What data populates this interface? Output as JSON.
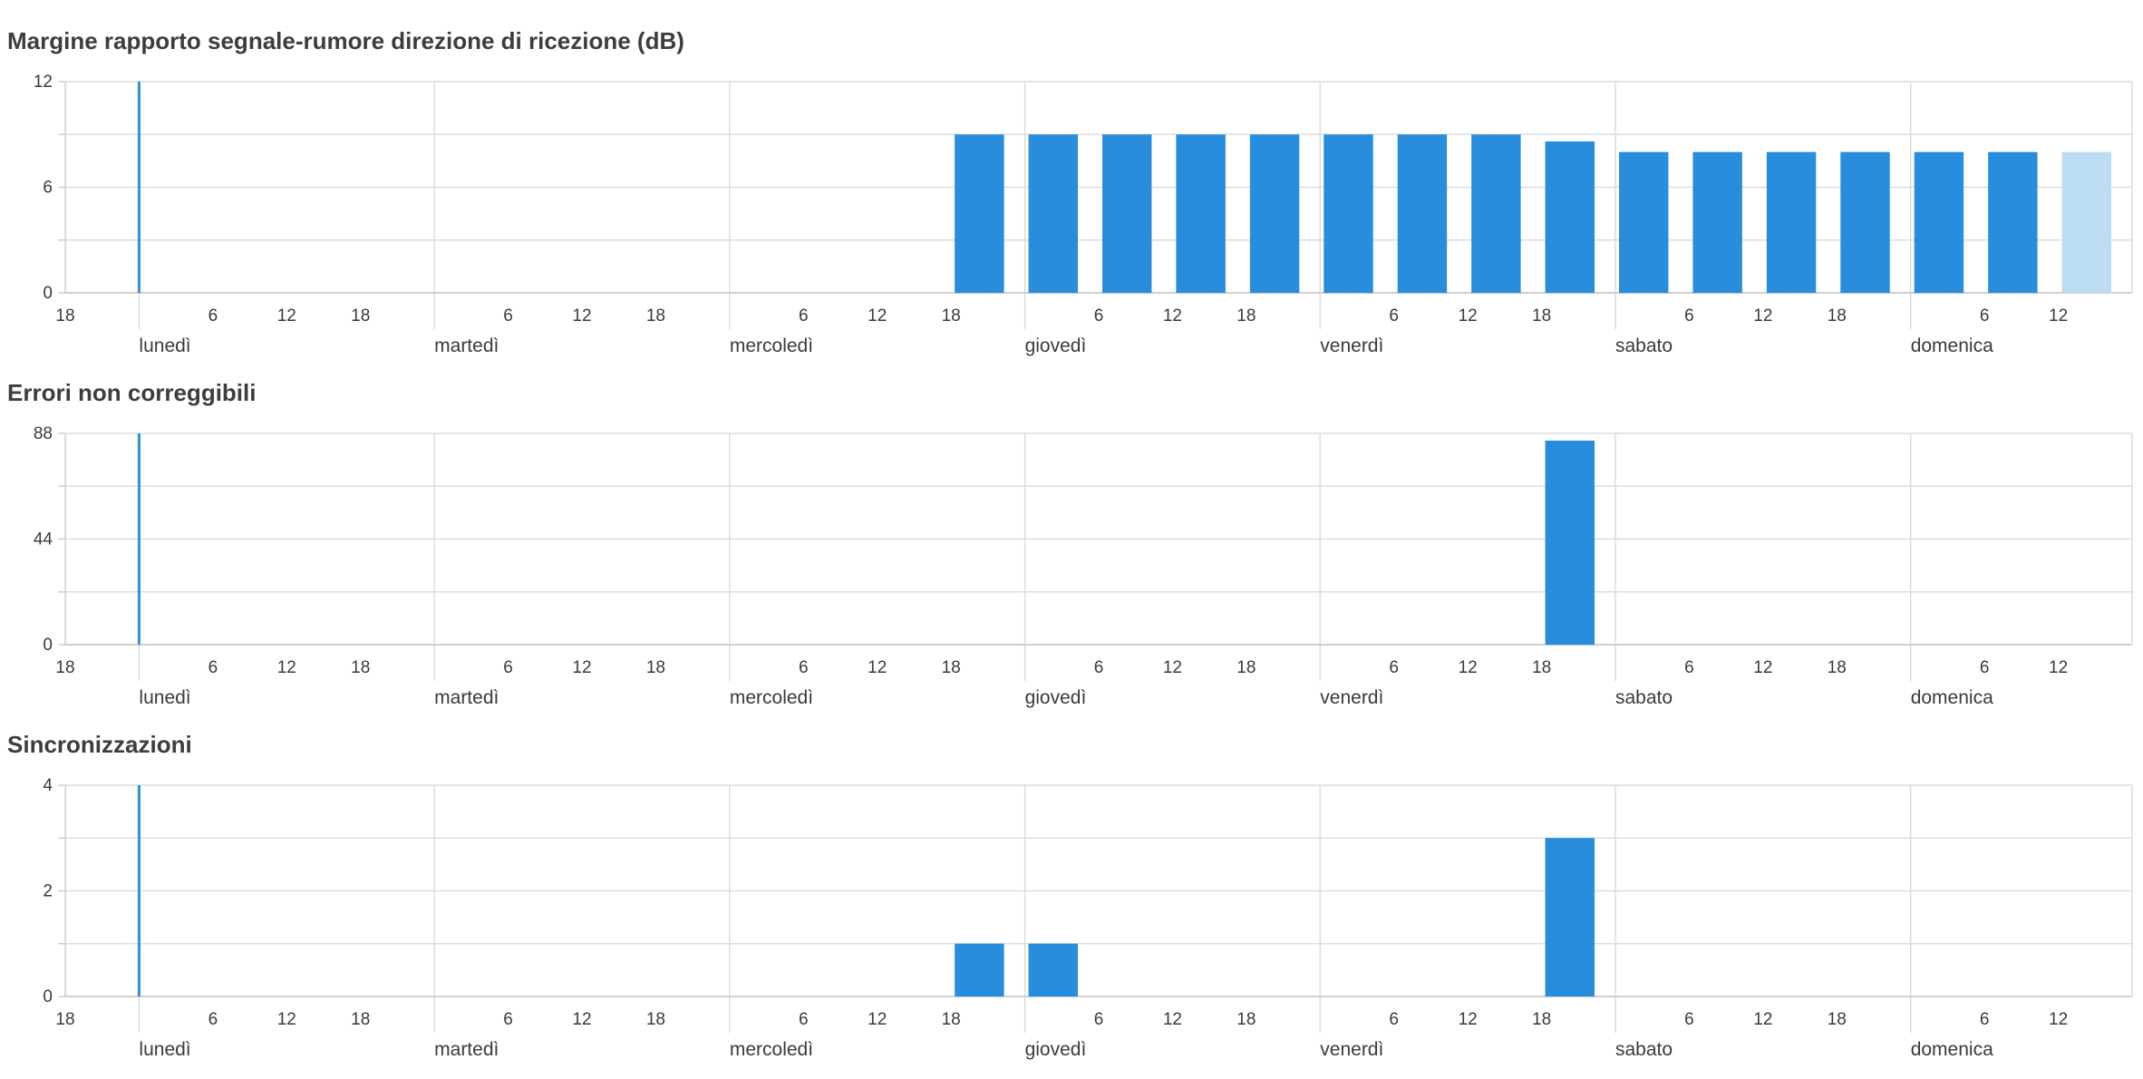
{
  "colors": {
    "bar": "#278ddc",
    "bar_light": "#bcdcf4",
    "grid": "#dcdcdc",
    "axis": "#cfcfcf",
    "now": "#2e90d7"
  },
  "x_axis": {
    "hour_ticks": [
      "18",
      "6",
      "12",
      "18",
      "6",
      "12",
      "18",
      "6",
      "12",
      "18",
      "6",
      "12",
      "18",
      "6",
      "12",
      "18",
      "6",
      "12",
      "18",
      "6",
      "12"
    ],
    "days": [
      "lunedì",
      "martedì",
      "mercoledì",
      "giovedì",
      "venerdì",
      "sabato",
      "domenica"
    ]
  },
  "chart_data": [
    {
      "type": "bar",
      "title": "Margine rapporto segnale-rumore direzione di ricezione (dB)",
      "ylim": [
        0,
        12
      ],
      "y_ticks": [
        "12",
        "6",
        "0"
      ],
      "bin_hours": 6,
      "x_start": "domenica 18:00",
      "x_end": "domenica 18:00 (+7 giorni)",
      "bars": [
        {
          "start": "mercoledì 18:00",
          "value": 9.0
        },
        {
          "start": "giovedì 00:00",
          "value": 9.0
        },
        {
          "start": "giovedì 06:00",
          "value": 9.0
        },
        {
          "start": "giovedì 12:00",
          "value": 9.0
        },
        {
          "start": "giovedì 18:00",
          "value": 9.0
        },
        {
          "start": "venerdì 00:00",
          "value": 9.0
        },
        {
          "start": "venerdì 06:00",
          "value": 9.0
        },
        {
          "start": "venerdì 12:00",
          "value": 9.0
        },
        {
          "start": "venerdì 18:00",
          "value": 8.6
        },
        {
          "start": "sabato 00:00",
          "value": 8.0
        },
        {
          "start": "sabato 06:00",
          "value": 8.0
        },
        {
          "start": "sabato 12:00",
          "value": 8.0
        },
        {
          "start": "sabato 18:00",
          "value": 8.0
        },
        {
          "start": "domenica 00:00",
          "value": 8.0
        },
        {
          "start": "domenica 06:00",
          "value": 8.0
        },
        {
          "start": "domenica 12:00",
          "value": 8.0,
          "partial": true
        }
      ]
    },
    {
      "type": "bar",
      "title": "Errori non correggibili",
      "ylim": [
        0,
        88
      ],
      "y_ticks": [
        "88",
        "44",
        "0"
      ],
      "bin_hours": 6,
      "bars": [
        {
          "start": "venerdì 18:00",
          "value": 85
        }
      ]
    },
    {
      "type": "bar",
      "title": "Sincronizzazioni",
      "ylim": [
        0,
        4
      ],
      "y_ticks": [
        "4",
        "2",
        "0"
      ],
      "bin_hours": 6,
      "bars": [
        {
          "start": "mercoledì 18:00",
          "value": 1
        },
        {
          "start": "giovedì 00:00",
          "value": 1
        },
        {
          "start": "venerdì 18:00",
          "value": 3
        }
      ]
    }
  ]
}
